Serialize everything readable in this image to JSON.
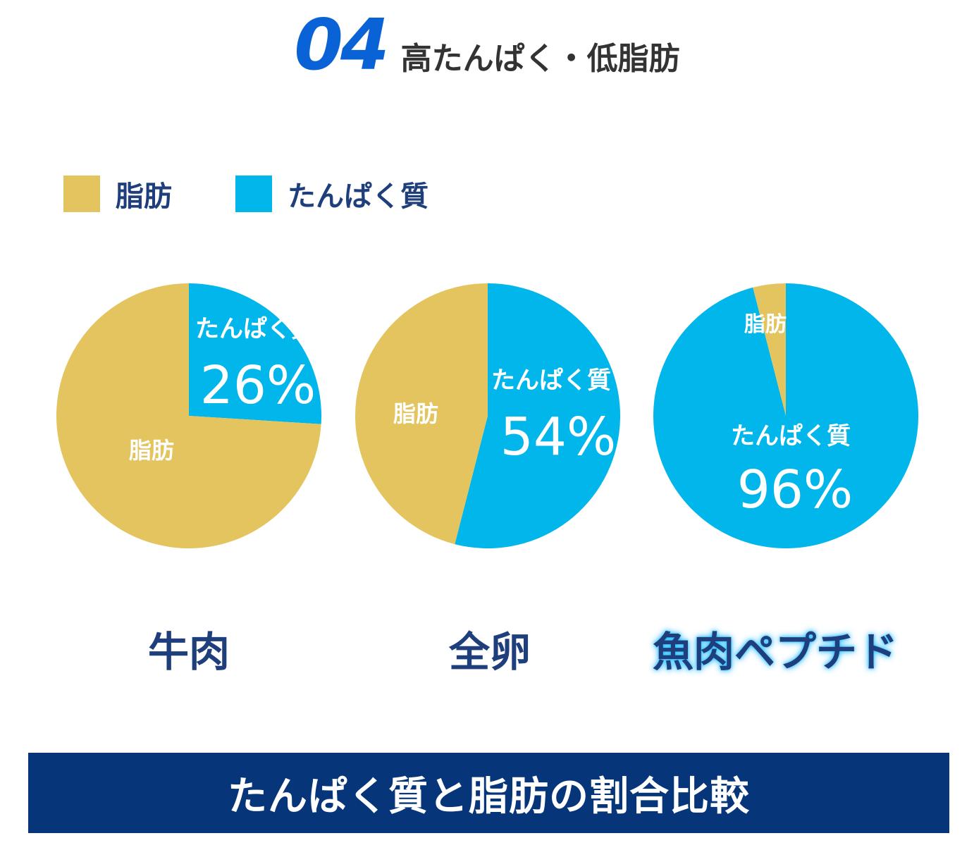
{
  "header": {
    "number": "04",
    "title": "高たんぱく・低脂肪"
  },
  "colors": {
    "fat": "#e3c45e",
    "protein": "#00b6ea",
    "navy": "#063579",
    "text": "#1e3f7c",
    "accent": "#0a63d6"
  },
  "legend": [
    {
      "label": "脂肪",
      "color": "#e3c45e"
    },
    {
      "label": "たんぱく質",
      "color": "#00b6ea"
    }
  ],
  "chart_data": [
    {
      "type": "pie",
      "title": "牛肉",
      "slices": [
        {
          "label": "たんぱく質",
          "value": 26,
          "percent_label": "26%",
          "color": "#00b6ea"
        },
        {
          "label": "脂肪",
          "value": 74,
          "color": "#e3c45e"
        }
      ]
    },
    {
      "type": "pie",
      "title": "全卵",
      "slices": [
        {
          "label": "たんぱく質",
          "value": 54,
          "percent_label": "54%",
          "color": "#00b6ea"
        },
        {
          "label": "脂肪",
          "value": 46,
          "color": "#e3c45e"
        }
      ]
    },
    {
      "type": "pie",
      "title": "魚肉ペプチド",
      "slices": [
        {
          "label": "たんぱく質",
          "value": 96,
          "percent_label": "96%",
          "color": "#00b6ea"
        },
        {
          "label": "脂肪",
          "value": 4,
          "color": "#e3c45e"
        }
      ]
    }
  ],
  "caption": "たんぱく質と脂肪の割合比較"
}
